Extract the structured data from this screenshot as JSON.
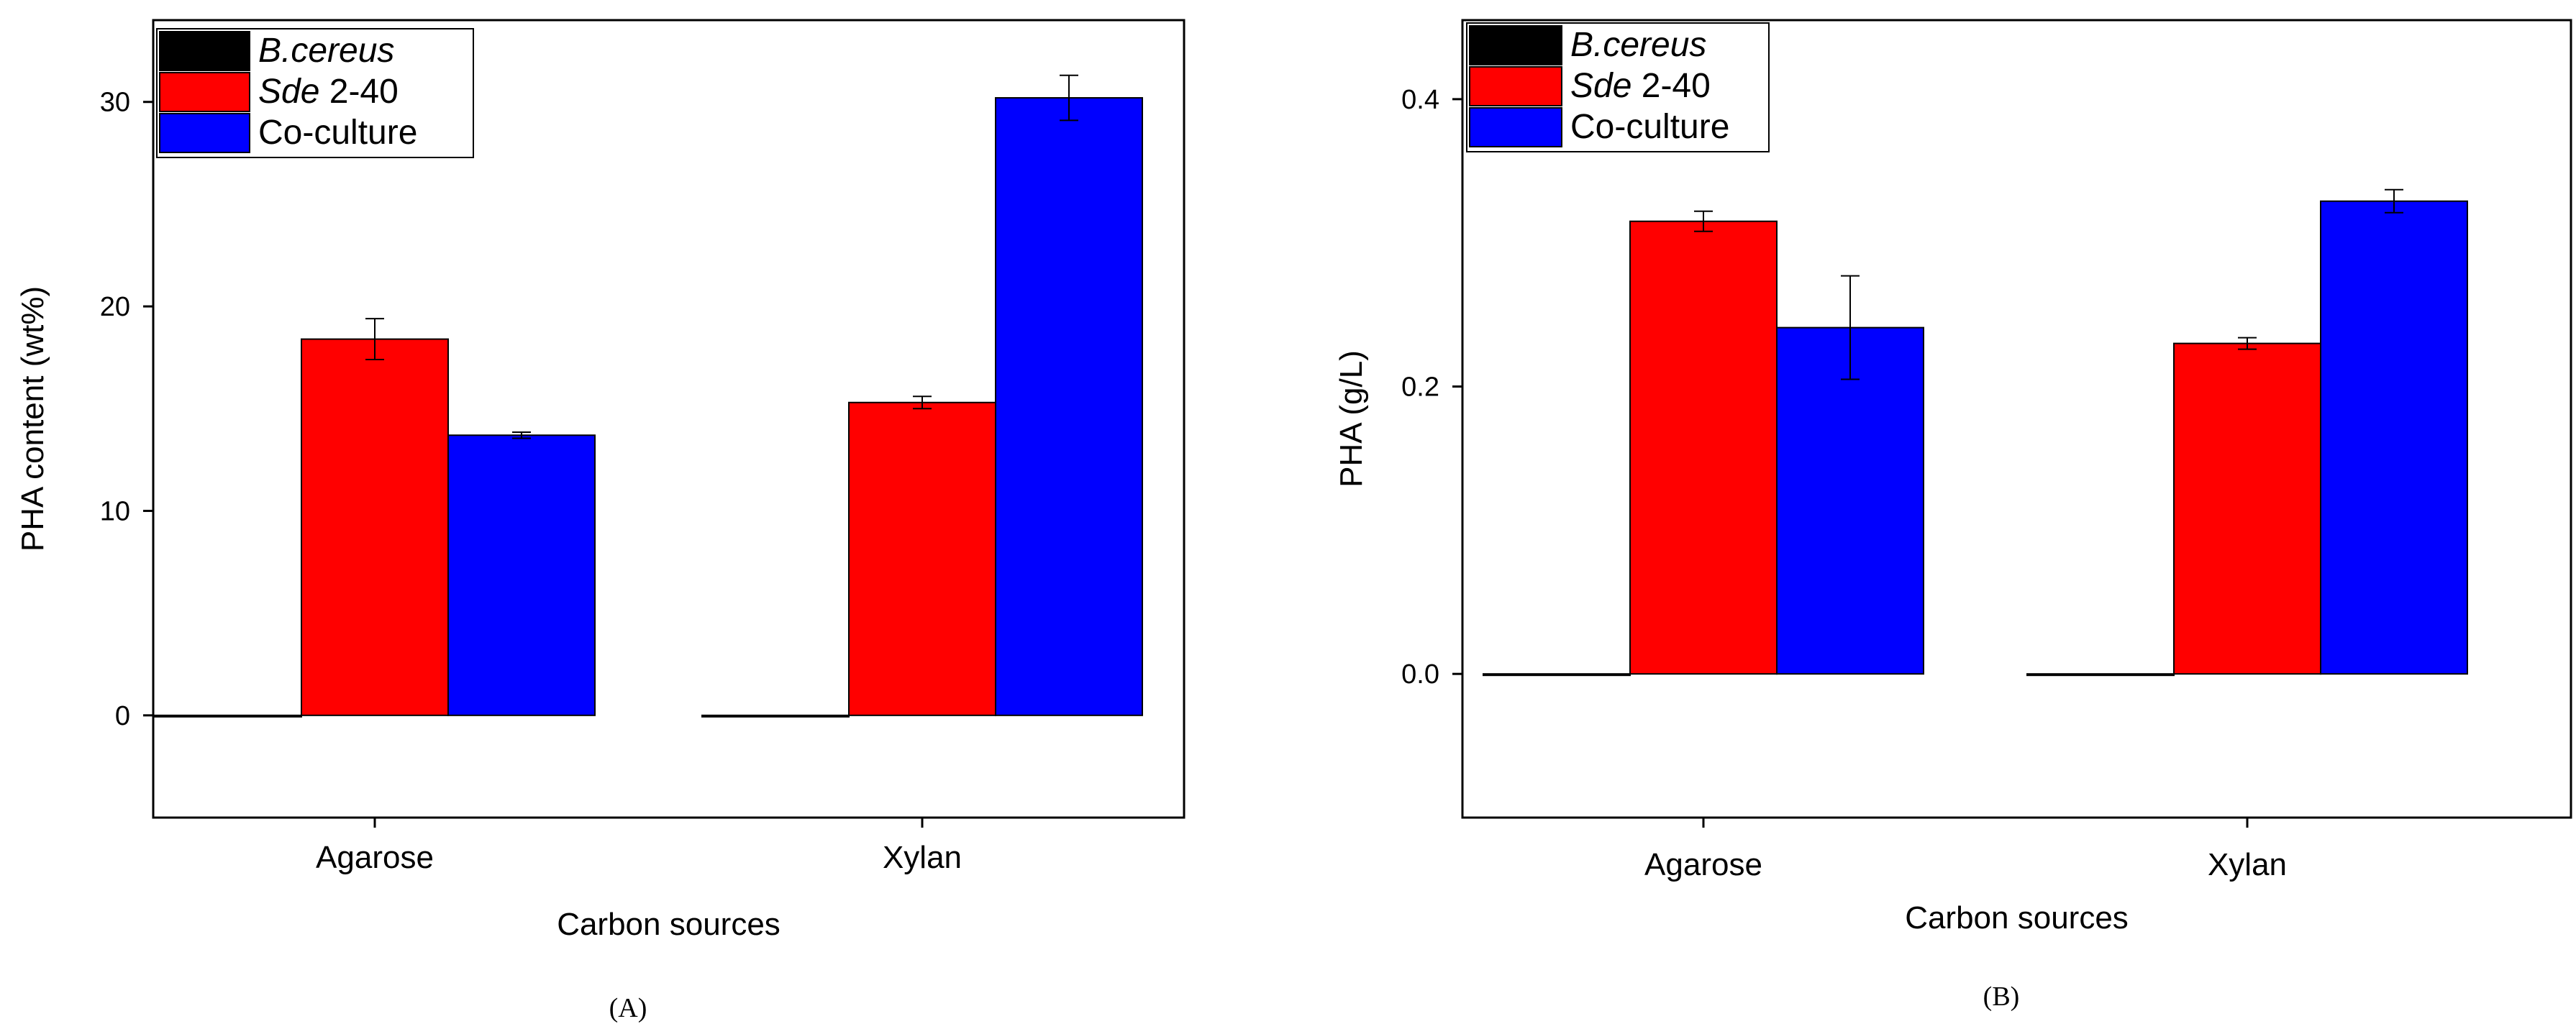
{
  "chart_data": [
    {
      "type": "bar",
      "panel_label": "(A)",
      "categories": [
        "Agarose",
        "Xylan"
      ],
      "xlabel": "Carbon sources",
      "ylabel": "PHA content (wt%)",
      "ylim": [
        -5,
        34
      ],
      "yticks": [
        0,
        10,
        20,
        30
      ],
      "legend_position": "top-left",
      "series": [
        {
          "name_italic": "B.cereus",
          "name_rest": "",
          "color": "#000000",
          "values": [
            0,
            0
          ],
          "errors": [
            0,
            0
          ]
        },
        {
          "name_italic": "Sde",
          "name_rest": " 2-40",
          "color": "#ff0000",
          "values": [
            18.4,
            15.3
          ],
          "errors": [
            1.0,
            0.3
          ]
        },
        {
          "name_italic": "",
          "name_rest": "Co-culture",
          "color": "#0000ff",
          "values": [
            13.7,
            30.2
          ],
          "errors": [
            0.15,
            1.1
          ]
        }
      ]
    },
    {
      "type": "bar",
      "panel_label": "(B)",
      "categories": [
        "Agarose",
        "Xylan"
      ],
      "xlabel": "Carbon sources",
      "ylabel": "PHA (g/L)",
      "ylim": [
        -0.1,
        0.455
      ],
      "yticks": [
        0.0,
        0.2,
        0.4
      ],
      "yticks_labels": [
        "0.0",
        "0.2",
        "0.4"
      ],
      "legend_position": "top-left",
      "series": [
        {
          "name_italic": "B.cereus",
          "name_rest": "",
          "color": "#000000",
          "values": [
            0,
            0
          ],
          "errors": [
            0,
            0
          ]
        },
        {
          "name_italic": "Sde",
          "name_rest": " 2-40",
          "color": "#ff0000",
          "values": [
            0.315,
            0.23
          ],
          "errors": [
            0.007,
            0.004
          ]
        },
        {
          "name_italic": "",
          "name_rest": "Co-culture",
          "color": "#0000ff",
          "values": [
            0.241,
            0.329
          ],
          "errors": [
            0.036,
            0.008
          ]
        }
      ]
    }
  ]
}
